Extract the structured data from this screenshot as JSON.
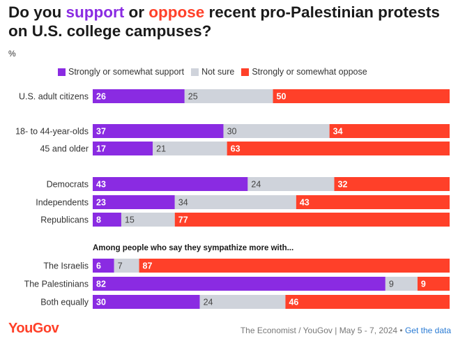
{
  "title": {
    "prefix": "Do you ",
    "support_word": "support",
    "middle": " or ",
    "oppose_word": "oppose",
    "suffix": " recent pro-Palestinian protests on U.S. college campuses?"
  },
  "unit_label": "%",
  "colors": {
    "support": "#8a2be2",
    "not_sure": "#cfd3db",
    "oppose": "#ff4029"
  },
  "section_note": "Among people who say they sympathize more with...",
  "logo_text": "YouGov",
  "source": {
    "text": "The Economist / YouGov | May 5 - 7, 2024",
    "separator": " • ",
    "link": "Get the data"
  },
  "chart_data": {
    "type": "bar",
    "stacked": true,
    "orientation": "horizontal",
    "unit": "%",
    "series": [
      {
        "name": "Strongly or somewhat support",
        "color": "#8a2be2"
      },
      {
        "name": "Not sure",
        "color": "#cfd3db"
      },
      {
        "name": "Strongly or somewhat oppose",
        "color": "#ff4029"
      }
    ],
    "rows": [
      {
        "label": "U.S. adult citizens",
        "values": [
          26,
          25,
          50
        ],
        "group": 0
      },
      {
        "label": "18- to 44-year-olds",
        "values": [
          37,
          30,
          34
        ],
        "group": 1
      },
      {
        "label": "45 and older",
        "values": [
          17,
          21,
          63
        ],
        "group": 1
      },
      {
        "label": "Democrats",
        "values": [
          43,
          24,
          32
        ],
        "group": 2
      },
      {
        "label": "Independents",
        "values": [
          23,
          34,
          43
        ],
        "group": 2
      },
      {
        "label": "Republicans",
        "values": [
          8,
          15,
          77
        ],
        "group": 2
      },
      {
        "label": "The Israelis",
        "values": [
          6,
          7,
          87
        ],
        "group": 3
      },
      {
        "label": "The Palestinians",
        "values": [
          82,
          9,
          9
        ],
        "group": 3
      },
      {
        "label": "Both equally",
        "values": [
          30,
          24,
          46
        ],
        "group": 3
      }
    ]
  }
}
